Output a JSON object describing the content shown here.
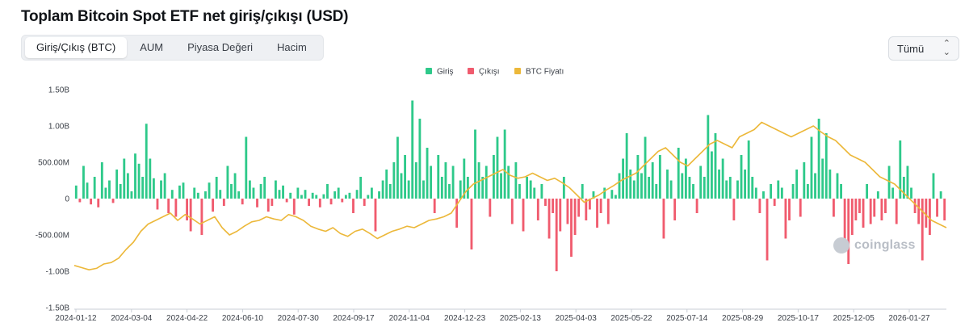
{
  "title": "Toplam Bitcoin Spot ETF net giriş/çıkışı (USD)",
  "tabs": [
    {
      "label": "Giriş/Çıkış (BTC)",
      "active": true
    },
    {
      "label": "AUM",
      "active": false
    },
    {
      "label": "Piyasa Değeri",
      "active": false
    },
    {
      "label": "Hacim",
      "active": false
    }
  ],
  "range_select": {
    "value": "Tümü"
  },
  "watermark": "coinglass",
  "chart_data": {
    "type": "bar",
    "title": "",
    "legend": [
      {
        "name": "Giriş",
        "color": "#2ec98a"
      },
      {
        "name": "Çıkışı",
        "color": "#f05b6e"
      },
      {
        "name": "BTC Fiyatı",
        "color": "#ecb83a"
      }
    ],
    "legend_position": "top-center",
    "grid": false,
    "y_axis": {
      "ticks": [
        1.5,
        1.0,
        0.5,
        0,
        -0.5,
        -1.0,
        -1.5
      ],
      "tick_labels": [
        "1.50B",
        "1.00B",
        "500.00M",
        "0",
        "-500.00M",
        "-1.00B",
        "-1.50B"
      ],
      "range": [
        -1.5,
        1.5
      ],
      "unit": "B USD"
    },
    "x_axis": {
      "tick_labels": [
        "2024-01-12",
        "2024-03-04",
        "2024-04-22",
        "2024-06-10",
        "2024-07-30",
        "2024-09-17",
        "2024-11-04",
        "2024-12-23",
        "2025-02-13",
        "2025-04-03",
        "2025-05-22",
        "2025-07-14",
        "2025-08-29",
        "2025-10-17",
        "2025-12-05",
        "2026-01-27"
      ]
    },
    "flows": [
      0.18,
      -0.05,
      0.45,
      0.22,
      -0.08,
      0.3,
      -0.12,
      0.5,
      0.15,
      0.25,
      -0.06,
      0.4,
      0.2,
      0.55,
      0.35,
      0.1,
      0.62,
      0.48,
      0.3,
      1.03,
      0.55,
      0.28,
      -0.15,
      0.25,
      0.35,
      -0.2,
      0.12,
      -0.25,
      0.18,
      0.22,
      -0.3,
      -0.45,
      0.15,
      0.08,
      -0.5,
      0.1,
      0.22,
      -0.18,
      0.3,
      0.12,
      -0.1,
      0.45,
      0.2,
      0.35,
      0.1,
      -0.08,
      0.85,
      0.25,
      0.15,
      -0.12,
      0.2,
      0.3,
      -0.18,
      -0.1,
      0.25,
      0.12,
      0.18,
      -0.05,
      0.08,
      -0.22,
      0.15,
      0.05,
      0.12,
      -0.1,
      0.08,
      0.05,
      -0.12,
      0.06,
      0.2,
      -0.08,
      0.1,
      0.15,
      -0.05,
      0.05,
      0.08,
      -0.2,
      0.12,
      0.3,
      -0.1,
      0.05,
      0.15,
      -0.45,
      0.1,
      0.25,
      0.4,
      0.2,
      0.5,
      0.85,
      0.35,
      0.6,
      0.25,
      1.35,
      0.5,
      1.1,
      0.25,
      0.7,
      0.45,
      -0.2,
      0.6,
      0.3,
      0.5,
      0.2,
      0.45,
      -0.4,
      0.25,
      0.55,
      0.3,
      -0.7,
      0.95,
      0.5,
      0.3,
      0.45,
      -0.25,
      0.6,
      0.85,
      0.35,
      0.95,
      0.45,
      -0.35,
      0.5,
      0.2,
      -0.45,
      0.3,
      0.25,
      0.15,
      -0.3,
      0.2,
      -0.1,
      -0.55,
      -0.2,
      -1.0,
      -0.45,
      0.3,
      -0.35,
      -0.8,
      -0.5,
      -0.25,
      0.2,
      -0.3,
      -0.15,
      0.1,
      -0.4,
      -0.2,
      0.15,
      -0.35,
      0.12,
      0.05,
      0.35,
      0.55,
      0.9,
      0.4,
      0.25,
      0.6,
      0.35,
      0.85,
      0.3,
      0.5,
      0.2,
      0.6,
      -0.55,
      0.4,
      0.25,
      -0.3,
      0.7,
      0.35,
      0.55,
      0.3,
      0.2,
      -0.2,
      0.45,
      0.3,
      1.15,
      0.65,
      0.9,
      0.4,
      0.55,
      0.25,
      0.3,
      -0.3,
      0.25,
      0.6,
      0.4,
      0.8,
      0.3,
      0.15,
      -0.2,
      0.1,
      -0.85,
      0.2,
      -0.1,
      0.25,
      0.15,
      -0.55,
      -0.3,
      0.2,
      0.4,
      -0.25,
      0.5,
      0.2,
      0.85,
      0.35,
      1.1,
      0.55,
      0.9,
      0.4,
      -0.25,
      0.35,
      0.2,
      -0.55,
      -0.9,
      -0.5,
      -0.3,
      -0.2,
      -0.4,
      0.2,
      -0.35,
      -0.25,
      0.1,
      -0.3,
      -0.2,
      0.45,
      0.15,
      -0.35,
      0.8,
      0.3,
      0.45,
      0.15,
      -0.2,
      -0.35,
      -0.85,
      -0.4,
      -0.5,
      0.35,
      -0.25,
      0.1,
      -0.3
    ],
    "btc_price_series": [
      -0.92,
      -0.95,
      -0.98,
      -0.96,
      -0.9,
      -0.88,
      -0.82,
      -0.7,
      -0.6,
      -0.45,
      -0.35,
      -0.3,
      -0.25,
      -0.2,
      -0.3,
      -0.22,
      -0.28,
      -0.35,
      -0.3,
      -0.25,
      -0.4,
      -0.5,
      -0.45,
      -0.38,
      -0.32,
      -0.3,
      -0.25,
      -0.28,
      -0.3,
      -0.22,
      -0.25,
      -0.3,
      -0.38,
      -0.42,
      -0.45,
      -0.4,
      -0.48,
      -0.52,
      -0.45,
      -0.42,
      -0.48,
      -0.55,
      -0.5,
      -0.45,
      -0.42,
      -0.38,
      -0.4,
      -0.35,
      -0.3,
      -0.28,
      -0.25,
      -0.2,
      -0.05,
      0.1,
      0.2,
      0.25,
      0.3,
      0.35,
      0.4,
      0.32,
      0.28,
      0.3,
      0.35,
      0.3,
      0.25,
      0.28,
      0.22,
      0.15,
      0.05,
      -0.05,
      0.0,
      0.05,
      0.12,
      0.18,
      0.25,
      0.3,
      0.35,
      0.45,
      0.55,
      0.65,
      0.7,
      0.6,
      0.5,
      0.45,
      0.55,
      0.65,
      0.75,
      0.8,
      0.75,
      0.7,
      0.85,
      0.9,
      0.95,
      1.05,
      1.0,
      0.95,
      0.9,
      0.85,
      0.9,
      0.95,
      1.0,
      0.92,
      0.85,
      0.8,
      0.7,
      0.6,
      0.55,
      0.5,
      0.4,
      0.3,
      0.25,
      0.2,
      0.1,
      0.0,
      -0.1,
      -0.2,
      -0.3,
      -0.35,
      -0.4
    ],
    "series": [
      {
        "name": "Giriş",
        "color": "#2ec98a",
        "role": "positive_flows"
      },
      {
        "name": "Çıkışı",
        "color": "#f05b6e",
        "role": "negative_flows"
      },
      {
        "name": "BTC Fiyatı",
        "color": "#ecb83a",
        "role": "price_line"
      }
    ]
  }
}
